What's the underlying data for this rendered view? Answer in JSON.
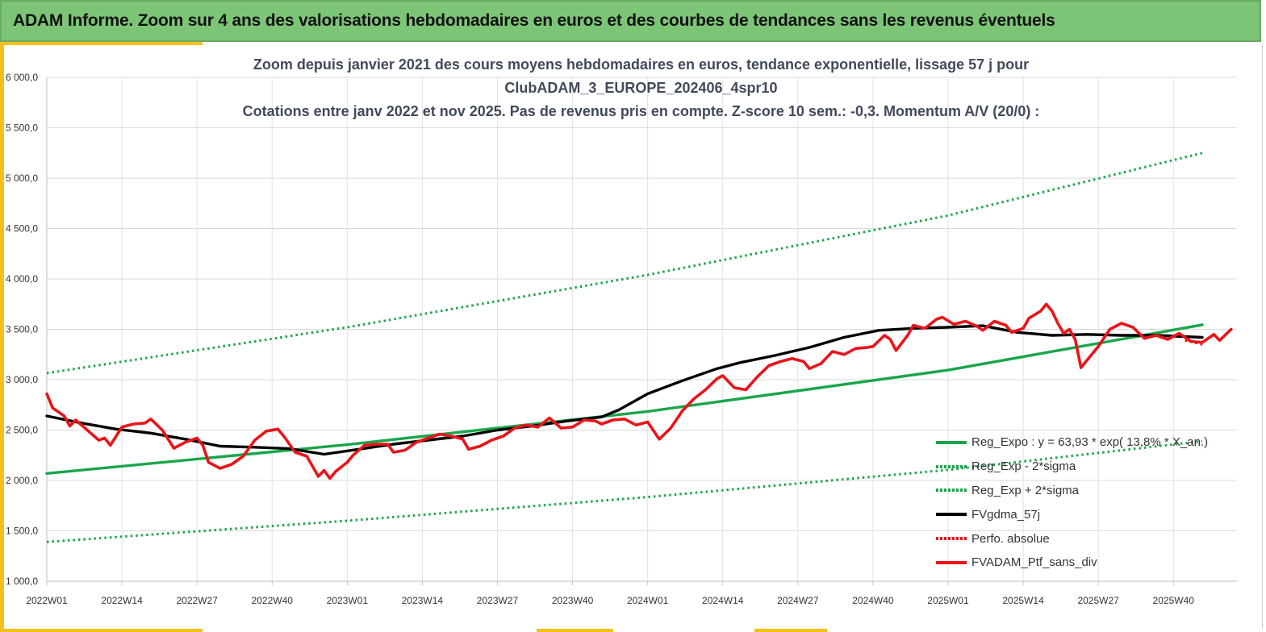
{
  "header": {
    "title": "ADAM Informe. Zoom sur 4 ans des valorisations hebdomadaires en euros et des courbes de tendances sans les revenus éventuels"
  },
  "colors": {
    "header_bg": "#7cc576",
    "accent": "#f2c21b",
    "trend": "#1aa64a",
    "moving_average": "#000000",
    "portfolio": "#e8151b",
    "perf_absolue": "#e8151b"
  },
  "chart_data": {
    "type": "line",
    "title_lines": [
      "Zoom depuis janvier 2021 des cours moyens hebdomadaires  en euros, tendance exponentielle, lissage 57 j pour",
      "ClubADAM_3_EUROPE_202406_4spr10",
      "Cotations entre janv 2022 et nov 2025. Pas de revenus pris en compte. Z-score 10 sem.: -0,3. Momentum A/V (20/0) :"
    ],
    "xlabel": "",
    "ylabel": "",
    "ylim": [
      1000,
      6000
    ],
    "y_ticks": [
      "1 000,0",
      "1 500,0",
      "2 000,0",
      "2 500,0",
      "3 000,0",
      "3 500,0",
      "4 000,0",
      "4 500,0",
      "5 000,0",
      "5 500,0",
      "6 000,0"
    ],
    "x_ticks": [
      "2022W01",
      "2022W14",
      "2022W27",
      "2022W40",
      "2023W01",
      "2023W14",
      "2023W27",
      "2023W40",
      "2024W01",
      "2024W14",
      "2024W27",
      "2024W40",
      "2025W01",
      "2025W14",
      "2025W27",
      "2025W40"
    ],
    "legend_position": "bottom-right",
    "grid": true,
    "series": [
      {
        "name": "Reg_Expo : y = 63,93 * exp( 13,8% *  X_an.)",
        "style": "solid",
        "color": "#1aa64a",
        "points": [
          [
            0,
            2070
          ],
          [
            52,
            2355
          ],
          [
            104,
            2685
          ],
          [
            156,
            3095
          ],
          [
            200,
            3545
          ]
        ]
      },
      {
        "name": "Reg_Exp - 2*sigma",
        "style": "dotted",
        "color": "#1aa64a",
        "points": [
          [
            0,
            1390
          ],
          [
            52,
            1600
          ],
          [
            104,
            1835
          ],
          [
            156,
            2105
          ],
          [
            200,
            2390
          ]
        ]
      },
      {
        "name": "Reg_Exp + 2*sigma",
        "style": "dotted",
        "color": "#1aa64a",
        "points": [
          [
            0,
            3065
          ],
          [
            52,
            3520
          ],
          [
            104,
            4040
          ],
          [
            156,
            4630
          ],
          [
            200,
            5250
          ]
        ]
      },
      {
        "name": "FVgdma_57j",
        "style": "solid",
        "color": "#000000",
        "points": [
          [
            0,
            2640
          ],
          [
            6,
            2570
          ],
          [
            12,
            2510
          ],
          [
            18,
            2470
          ],
          [
            24,
            2410
          ],
          [
            30,
            2340
          ],
          [
            36,
            2330
          ],
          [
            42,
            2315
          ],
          [
            48,
            2260
          ],
          [
            54,
            2310
          ],
          [
            60,
            2360
          ],
          [
            66,
            2400
          ],
          [
            72,
            2440
          ],
          [
            78,
            2500
          ],
          [
            84,
            2540
          ],
          [
            90,
            2590
          ],
          [
            96,
            2630
          ],
          [
            99,
            2700
          ],
          [
            104,
            2860
          ],
          [
            110,
            2990
          ],
          [
            116,
            3110
          ],
          [
            120,
            3170
          ],
          [
            126,
            3240
          ],
          [
            132,
            3320
          ],
          [
            138,
            3420
          ],
          [
            144,
            3490
          ],
          [
            150,
            3510
          ],
          [
            156,
            3520
          ],
          [
            162,
            3535
          ],
          [
            168,
            3470
          ],
          [
            174,
            3440
          ],
          [
            180,
            3450
          ],
          [
            186,
            3440
          ],
          [
            192,
            3440
          ],
          [
            200,
            3420
          ]
        ]
      },
      {
        "name": "Perfo. absolue",
        "style": "dotted",
        "color": "#e8151b",
        "points": [
          [
            197,
            3390
          ],
          [
            200,
            3350
          ]
        ]
      },
      {
        "name": "FVADAM_Ptf_sans_div",
        "style": "solid",
        "color": "#e8151b",
        "points": [
          [
            0,
            2860
          ],
          [
            1,
            2720
          ],
          [
            3,
            2640
          ],
          [
            4,
            2540
          ],
          [
            5,
            2600
          ],
          [
            7,
            2500
          ],
          [
            9,
            2400
          ],
          [
            10,
            2420
          ],
          [
            11,
            2350
          ],
          [
            13,
            2530
          ],
          [
            15,
            2560
          ],
          [
            17,
            2570
          ],
          [
            18,
            2610
          ],
          [
            20,
            2500
          ],
          [
            22,
            2320
          ],
          [
            24,
            2380
          ],
          [
            26,
            2420
          ],
          [
            27,
            2350
          ],
          [
            28,
            2180
          ],
          [
            30,
            2120
          ],
          [
            32,
            2160
          ],
          [
            34,
            2240
          ],
          [
            36,
            2400
          ],
          [
            38,
            2490
          ],
          [
            40,
            2510
          ],
          [
            41,
            2440
          ],
          [
            43,
            2280
          ],
          [
            45,
            2240
          ],
          [
            46,
            2140
          ],
          [
            47,
            2040
          ],
          [
            48,
            2100
          ],
          [
            49,
            2020
          ],
          [
            50,
            2090
          ],
          [
            52,
            2180
          ],
          [
            53,
            2250
          ],
          [
            55,
            2350
          ],
          [
            57,
            2360
          ],
          [
            59,
            2360
          ],
          [
            60,
            2280
          ],
          [
            62,
            2300
          ],
          [
            64,
            2380
          ],
          [
            66,
            2420
          ],
          [
            68,
            2460
          ],
          [
            70,
            2440
          ],
          [
            72,
            2410
          ],
          [
            73,
            2310
          ],
          [
            75,
            2340
          ],
          [
            77,
            2400
          ],
          [
            79,
            2440
          ],
          [
            81,
            2520
          ],
          [
            83,
            2550
          ],
          [
            85,
            2530
          ],
          [
            87,
            2620
          ],
          [
            89,
            2520
          ],
          [
            91,
            2530
          ],
          [
            93,
            2600
          ],
          [
            95,
            2590
          ],
          [
            96,
            2560
          ],
          [
            98,
            2600
          ],
          [
            100,
            2610
          ],
          [
            102,
            2550
          ],
          [
            104,
            2580
          ],
          [
            106,
            2410
          ],
          [
            108,
            2520
          ],
          [
            110,
            2690
          ],
          [
            112,
            2810
          ],
          [
            114,
            2900
          ],
          [
            116,
            3010
          ],
          [
            117,
            3040
          ],
          [
            119,
            2920
          ],
          [
            121,
            2900
          ],
          [
            123,
            3030
          ],
          [
            125,
            3140
          ],
          [
            127,
            3180
          ],
          [
            129,
            3210
          ],
          [
            131,
            3180
          ],
          [
            132,
            3110
          ],
          [
            134,
            3160
          ],
          [
            136,
            3280
          ],
          [
            138,
            3250
          ],
          [
            140,
            3310
          ],
          [
            142,
            3320
          ],
          [
            143,
            3330
          ],
          [
            145,
            3440
          ],
          [
            146,
            3400
          ],
          [
            147,
            3290
          ],
          [
            149,
            3440
          ],
          [
            150,
            3540
          ],
          [
            152,
            3510
          ],
          [
            154,
            3600
          ],
          [
            155,
            3620
          ],
          [
            157,
            3550
          ],
          [
            159,
            3580
          ],
          [
            161,
            3530
          ],
          [
            162,
            3490
          ],
          [
            164,
            3580
          ],
          [
            166,
            3540
          ],
          [
            167,
            3470
          ],
          [
            169,
            3510
          ],
          [
            170,
            3610
          ],
          [
            172,
            3680
          ],
          [
            173,
            3750
          ],
          [
            174,
            3680
          ],
          [
            175,
            3560
          ],
          [
            176,
            3460
          ],
          [
            177,
            3500
          ],
          [
            178,
            3400
          ],
          [
            179,
            3120
          ],
          [
            181,
            3260
          ],
          [
            182,
            3330
          ],
          [
            184,
            3500
          ],
          [
            186,
            3560
          ],
          [
            188,
            3520
          ],
          [
            190,
            3410
          ],
          [
            192,
            3440
          ],
          [
            194,
            3400
          ],
          [
            196,
            3460
          ],
          [
            198,
            3380
          ],
          [
            200,
            3370
          ],
          [
            202,
            3450
          ],
          [
            203,
            3390
          ],
          [
            205,
            3500
          ]
        ]
      }
    ]
  }
}
